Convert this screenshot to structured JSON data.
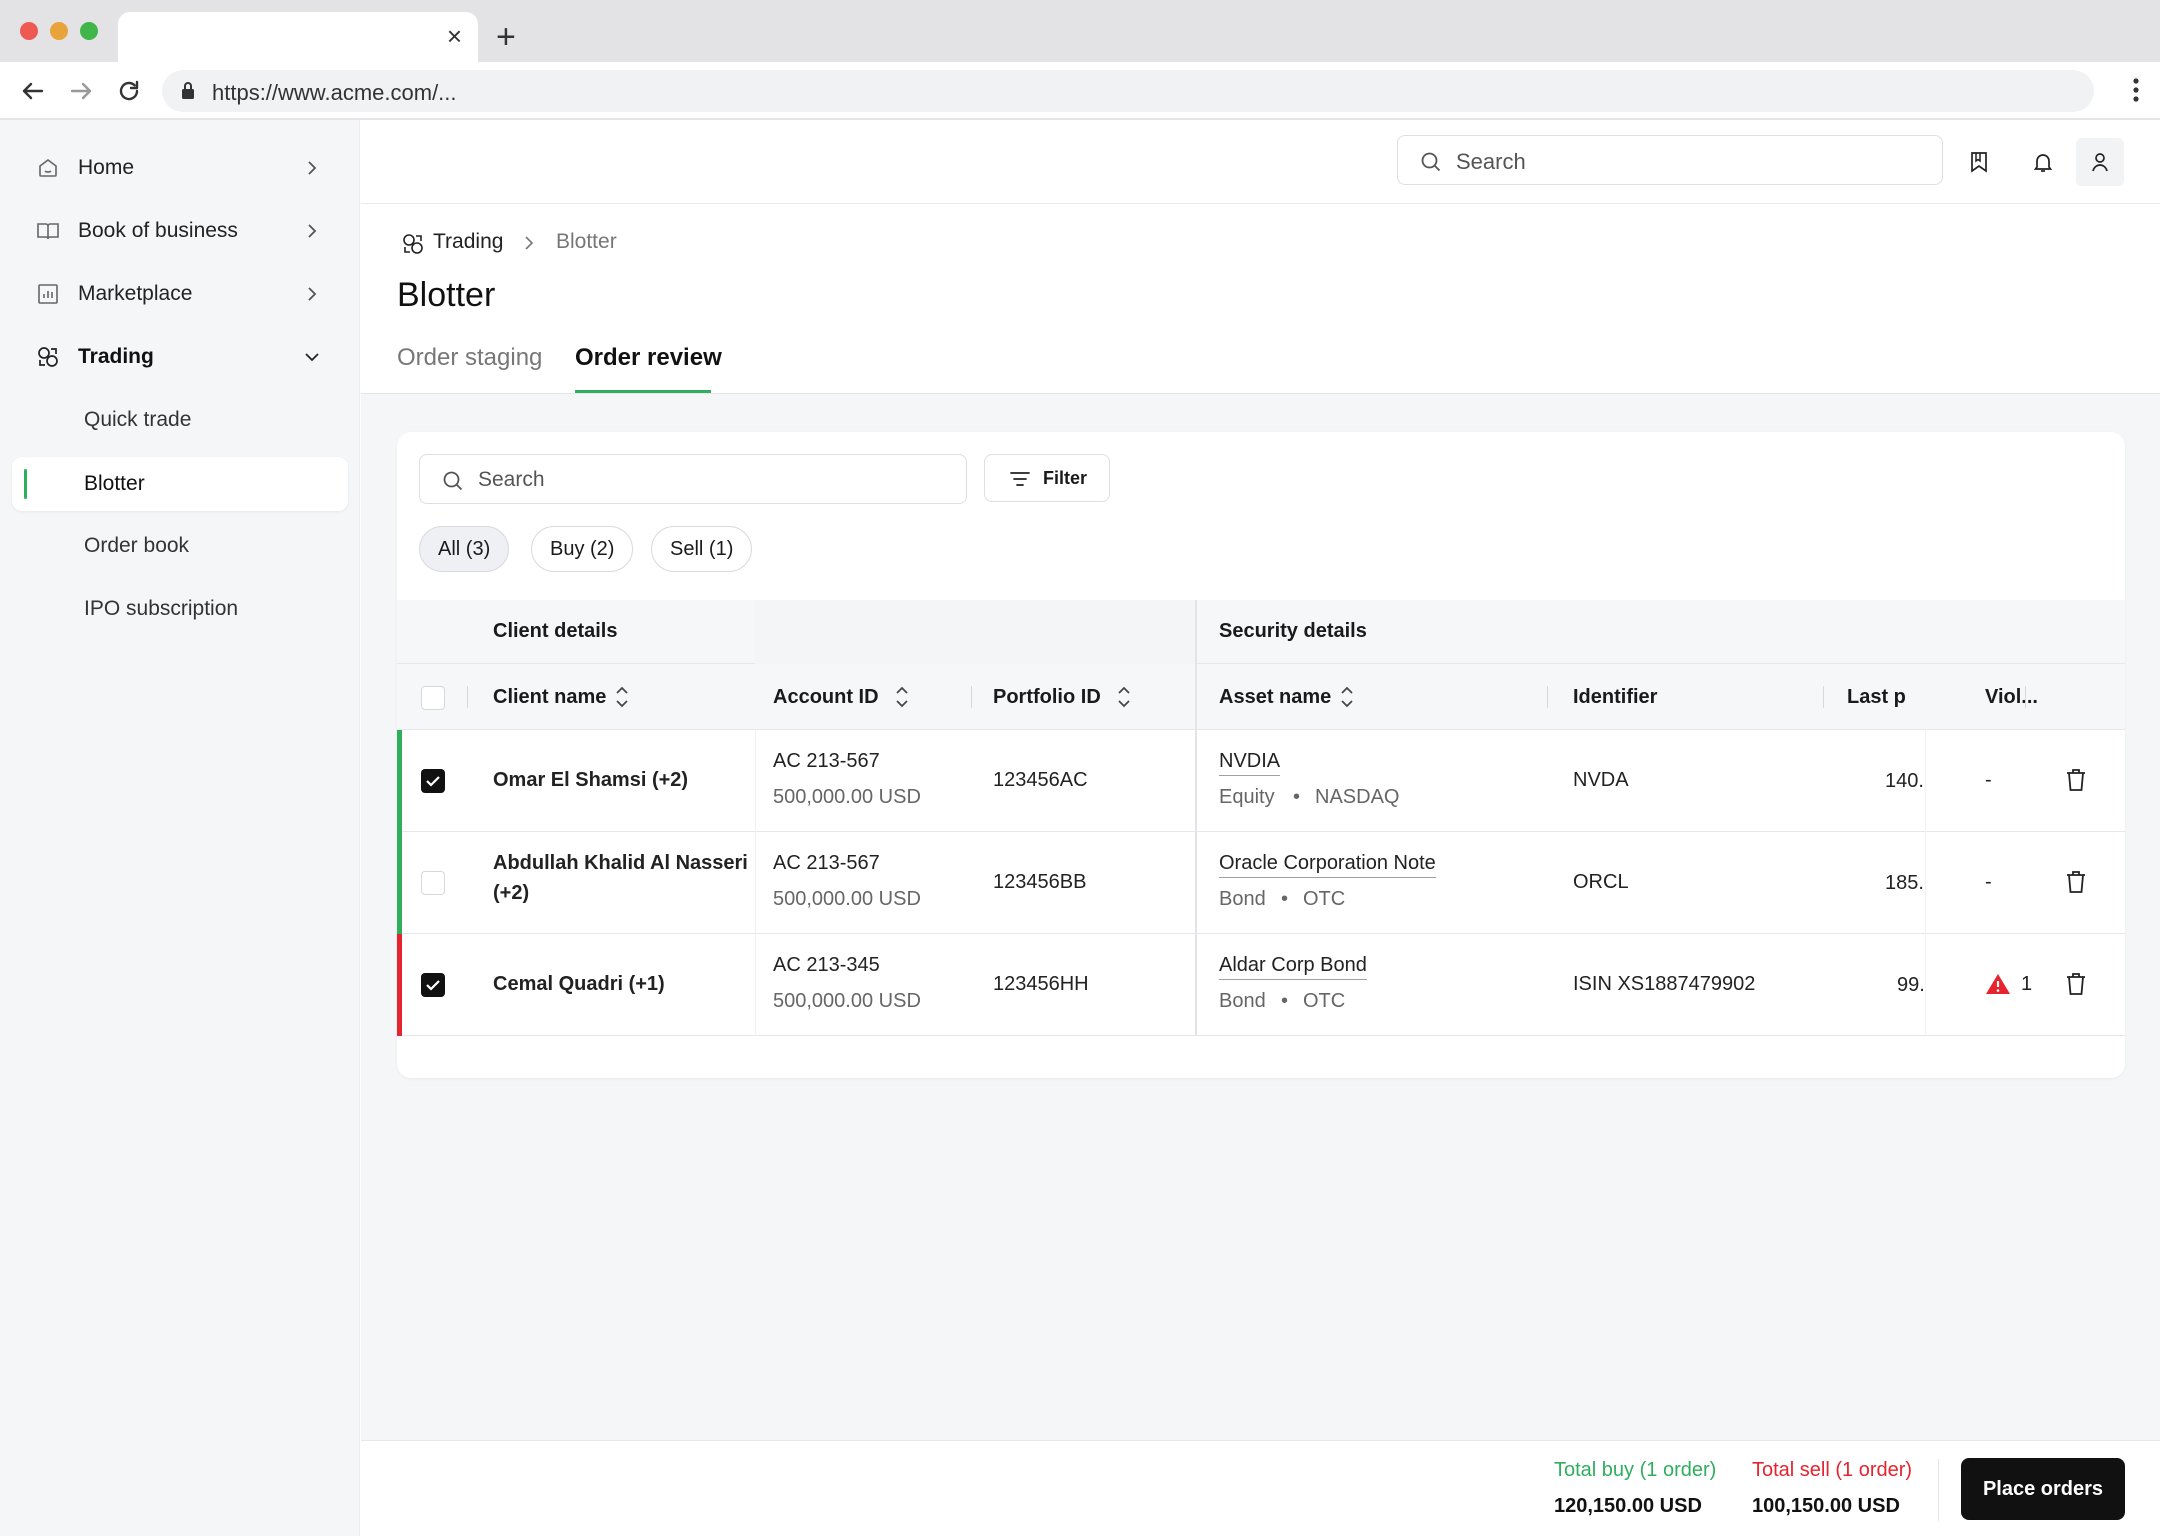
{
  "browser": {
    "url": "https://www.acme.com/...",
    "tab_close": "×",
    "new_tab": "+"
  },
  "sidebar": {
    "items": [
      {
        "label": "Home",
        "icon": "home-icon"
      },
      {
        "label": "Book of business",
        "icon": "book-icon"
      },
      {
        "label": "Marketplace",
        "icon": "chart-icon"
      },
      {
        "label": "Trading",
        "icon": "trading-icon",
        "expanded": true
      }
    ],
    "subitems": [
      {
        "label": "Quick trade"
      },
      {
        "label": "Blotter",
        "active": true
      },
      {
        "label": "Order book"
      },
      {
        "label": "IPO subscription"
      }
    ]
  },
  "header": {
    "search_placeholder": "Search"
  },
  "page": {
    "breadcrumb": [
      "Trading",
      "Blotter"
    ],
    "title": "Blotter",
    "tabs": [
      {
        "label": "Order staging",
        "active": false
      },
      {
        "label": "Order review",
        "active": true
      }
    ]
  },
  "toolbar": {
    "search_placeholder": "Search",
    "filter_label": "Filter",
    "chips": [
      {
        "label": "All (3)",
        "active": true
      },
      {
        "label": "Buy (2)",
        "active": false
      },
      {
        "label": "Sell (1)",
        "active": false
      }
    ]
  },
  "table": {
    "groups": {
      "client": "Client details",
      "security": "Security details"
    },
    "columns": {
      "client_name": "Client name",
      "account_id": "Account ID",
      "portfolio_id": "Portfolio ID",
      "asset_name": "Asset name",
      "identifier": "Identifier",
      "last_price": "Last p",
      "violations": "Viol..."
    },
    "rows": [
      {
        "side": "buy",
        "checked": true,
        "client": "Omar El Shamsi (+2)",
        "client_line2": "",
        "account": "AC 213-567",
        "amount": "500,000.00 USD",
        "portfolio": "123456AC",
        "asset": "NVDIA",
        "asset_type": "Equity",
        "venue": "NASDAQ",
        "identifier": "NVDA",
        "price": "140.",
        "violations": "-",
        "violation_count": ""
      },
      {
        "side": "buy",
        "checked": false,
        "client": "Abdullah Khalid Al Nasseri",
        "client_line2": "(+2)",
        "account": "AC 213-567",
        "amount": "500,000.00 USD",
        "portfolio": "123456BB",
        "asset": "Oracle Corporation Note",
        "asset_type": "Bond",
        "venue": "OTC",
        "identifier": "ORCL",
        "price": "185.",
        "violations": "-",
        "violation_count": ""
      },
      {
        "side": "sell",
        "checked": true,
        "client": "Cemal Quadri (+1)",
        "client_line2": "",
        "account": "AC 213-345",
        "amount": "500,000.00 USD",
        "portfolio": "123456HH",
        "asset": "Aldar Corp Bond",
        "asset_type": "Bond",
        "venue": "OTC",
        "identifier": "ISIN XS1887479902",
        "price": "99.",
        "violations": "",
        "violation_count": "1"
      }
    ],
    "bullet": "•"
  },
  "footer": {
    "total_buy_label": "Total buy (1 order)",
    "total_buy_value": "120,150.00 USD",
    "total_sell_label": "Total sell (1 order)",
    "total_sell_value": "100,150.00 USD",
    "place_orders": "Place orders"
  },
  "colors": {
    "buy": "#2fae5e",
    "sell": "#e5242f",
    "primary": "#111111"
  }
}
